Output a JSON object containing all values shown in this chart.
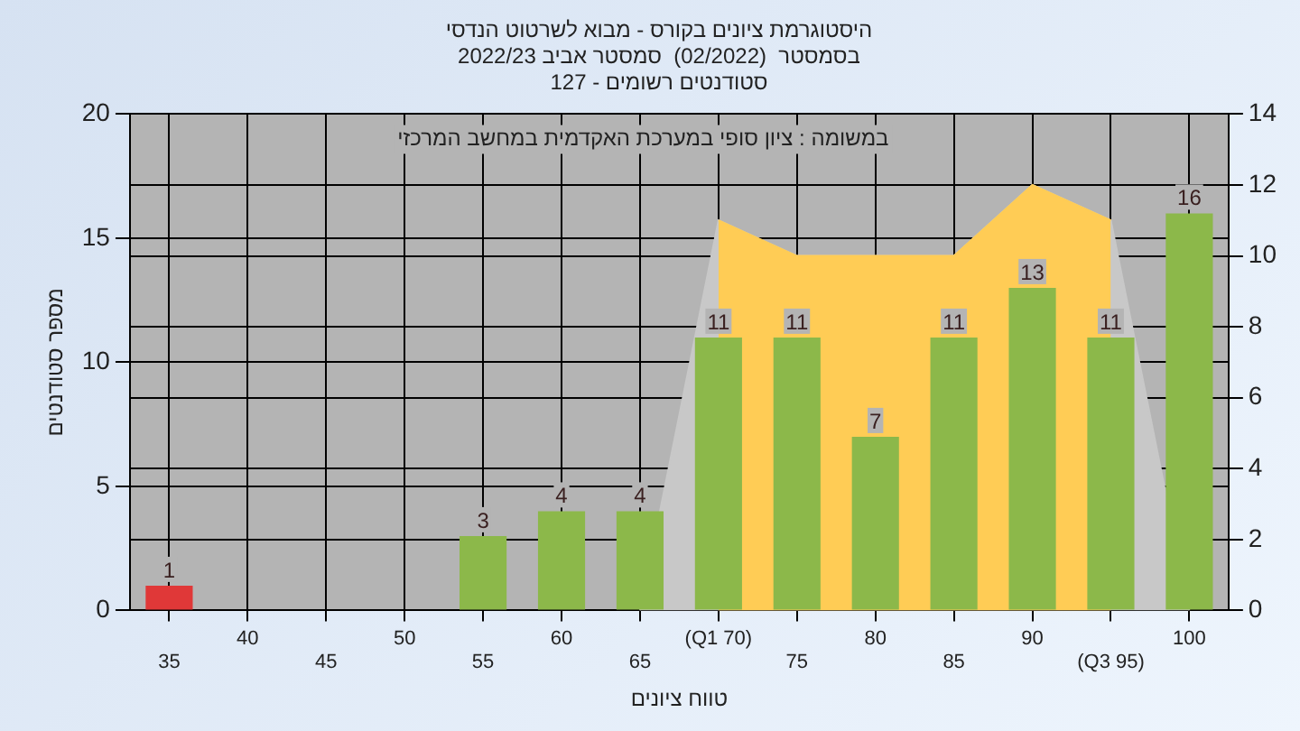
{
  "chart_data": {
    "type": "bar",
    "title": "היסטוגרמת ציונים בקורס - מבוא לשרטוט הנדסי\nבסמסטר  (02/2022)  סמסטר אביב 2022/23\nסטודנטים רשומים - 127",
    "xlabel": "טווח ציונים",
    "ylabel": "מספר סטודנטים",
    "annotations": [
      "במשומה : ציון סופי במערכת האקדמית במחשב המרכזי"
    ],
    "categories": [
      "35",
      "40",
      "45",
      "50",
      "55",
      "60",
      "65",
      "(Q1 70)",
      "75",
      "80",
      "85",
      "90",
      "(Q3 95)",
      "100"
    ],
    "series": [
      {
        "colors": [
          "#e03838",
          "#8cb84a",
          "#8cb84a",
          "#8cb84a",
          "#8cb84a",
          "#8cb84a",
          "#8cb84a",
          "#8cb84a",
          "#8cb84a",
          "#8cb84a",
          "#8cb84a",
          "#8cb84a",
          "#8cb84a",
          "#8cb84a"
        ],
        "values": [
          1,
          0,
          0,
          0,
          3,
          4,
          4,
          11,
          11,
          7,
          11,
          13,
          11,
          16
        ],
        "value_labels": [
          "1",
          null,
          null,
          null,
          "3",
          "4",
          "4",
          "11",
          "11",
          "7",
          "11",
          "13",
          "11",
          "16"
        ]
      },
      {
        "type": "area",
        "axis": "y2",
        "color": "#c8c8c8",
        "values": [
          null,
          null,
          null,
          null,
          null,
          null,
          0,
          11,
          10,
          10,
          10,
          12,
          11,
          0
        ]
      },
      {
        "type": "area",
        "axis": "y2",
        "color": "#ffcc55",
        "values": [
          null,
          null,
          null,
          null,
          null,
          null,
          null,
          11,
          10,
          10,
          10,
          12,
          11,
          null
        ]
      }
    ],
    "ylim": [
      0,
      20
    ],
    "yticks": [
      0,
      5,
      10,
      15,
      20
    ],
    "y2lim": [
      0,
      14
    ],
    "y2ticks": [
      0,
      2,
      4,
      6,
      8,
      10,
      12,
      14
    ],
    "grid": true,
    "legend": false
  }
}
